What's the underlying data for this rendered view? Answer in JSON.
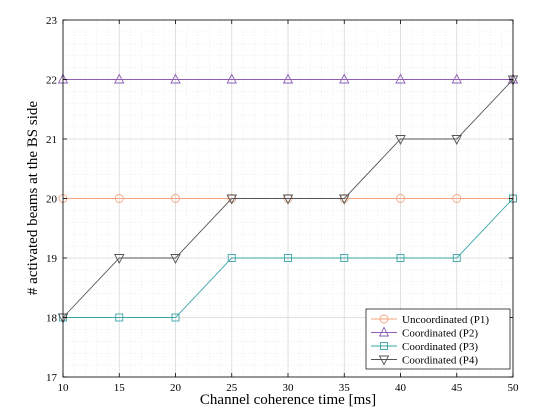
{
  "chart_data": {
    "type": "line",
    "xlabel": "Channel coherence time [ms]",
    "ylabel": "# activated beams at the BS side",
    "xlim": [
      10,
      50
    ],
    "ylim": [
      17,
      23
    ],
    "xticks": [
      10,
      15,
      20,
      25,
      30,
      35,
      40,
      45,
      50
    ],
    "yticks": [
      17,
      18,
      19,
      20,
      21,
      22,
      23
    ],
    "grid": true,
    "legend_position": "bottom-right",
    "x": [
      10,
      15,
      20,
      25,
      30,
      35,
      40,
      45,
      50
    ],
    "series": [
      {
        "name": "Uncoordinated (P1)",
        "marker": "circle",
        "color": "#f4a582",
        "values": [
          20,
          20,
          20,
          20,
          20,
          20,
          20,
          20,
          20
        ]
      },
      {
        "name": "Coordinated (P2)",
        "marker": "triangle-up",
        "color": "#8e5fb3",
        "values": [
          22,
          22,
          22,
          22,
          22,
          22,
          22,
          22,
          22
        ]
      },
      {
        "name": "Coordinated (P3)",
        "marker": "square",
        "color": "#3aa5a5",
        "values": [
          18,
          18,
          18,
          19,
          19,
          19,
          19,
          19,
          20
        ]
      },
      {
        "name": "Coordinated (P4)",
        "marker": "triangle-down",
        "color": "#555555",
        "values": [
          18,
          19,
          19,
          20,
          20,
          20,
          21,
          21,
          22
        ]
      }
    ]
  }
}
